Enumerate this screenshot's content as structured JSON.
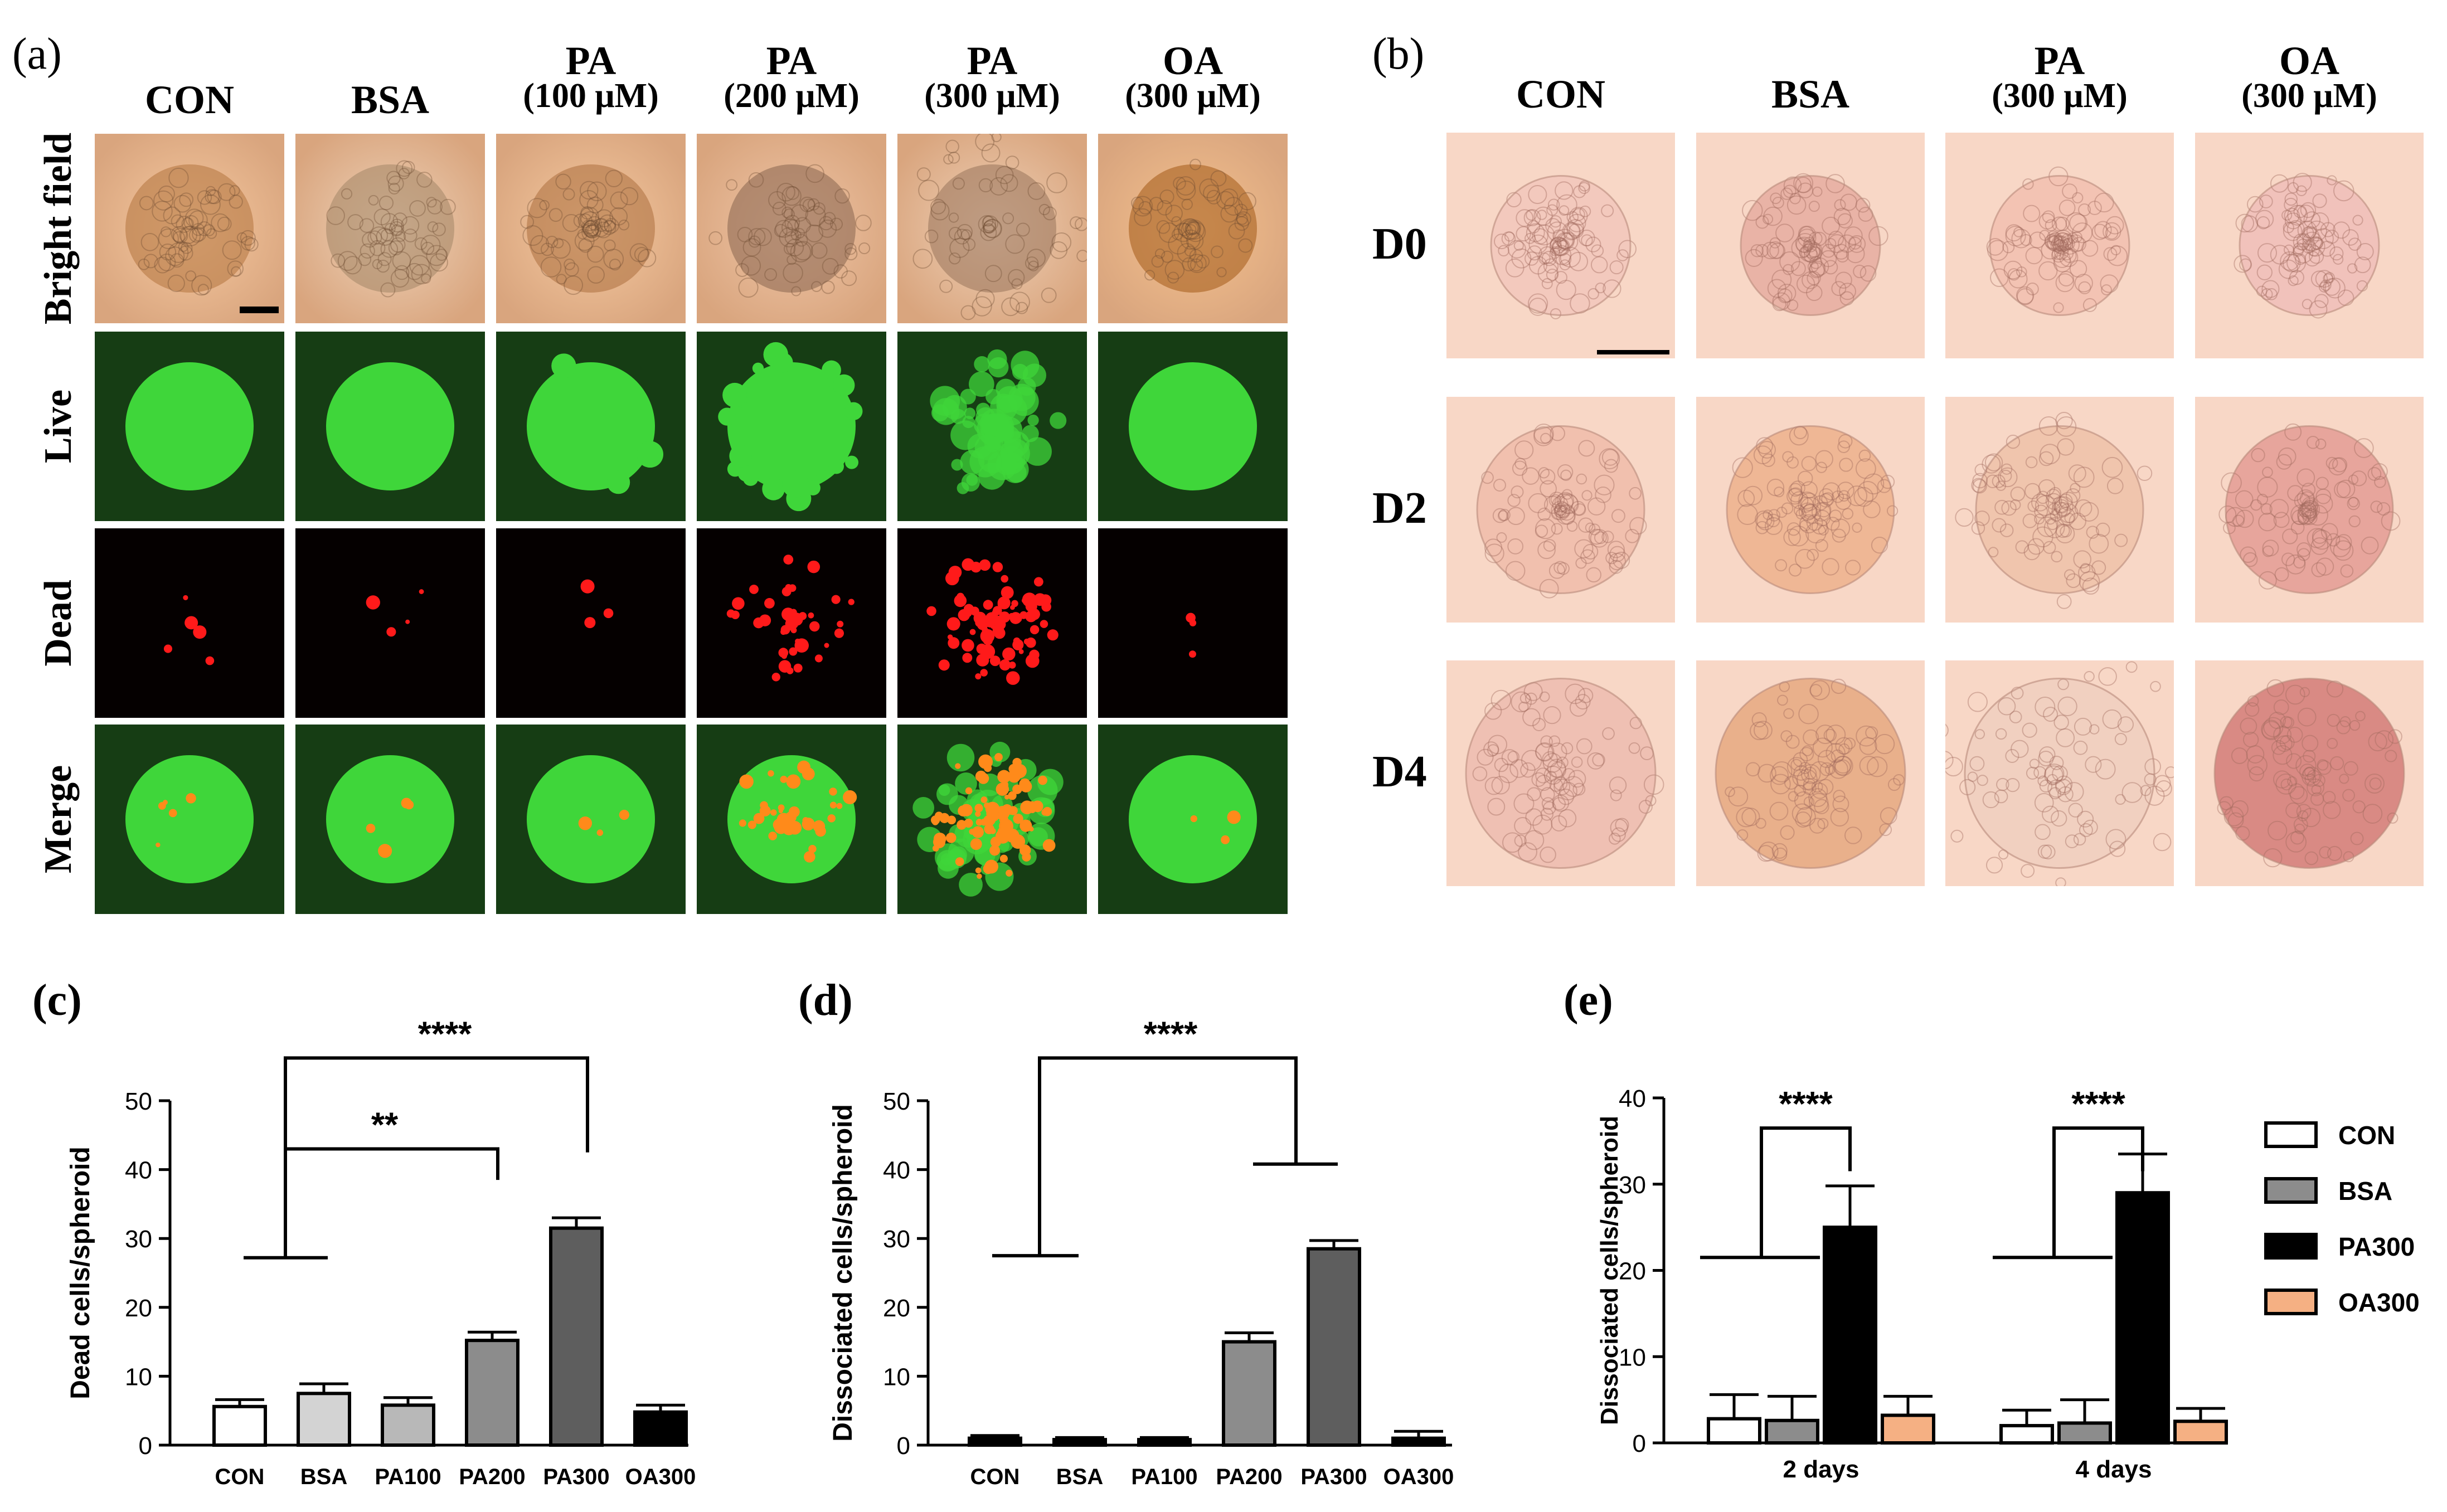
{
  "panel_a": {
    "label": "(a)",
    "columns": [
      {
        "line1": "CON",
        "line2": ""
      },
      {
        "line1": "BSA",
        "line2": ""
      },
      {
        "line1": "PA",
        "line2": "(100 μM)"
      },
      {
        "line1": "PA",
        "line2": "(200 μM)"
      },
      {
        "line1": "PA",
        "line2": "(300 μM)"
      },
      {
        "line1": "OA",
        "line2": "(300 μM)"
      }
    ],
    "rows": [
      "Bright field",
      "Live",
      "Dead",
      "Merge"
    ]
  },
  "panel_b": {
    "label": "(b)",
    "columns": [
      {
        "line1": "CON",
        "line2": ""
      },
      {
        "line1": "BSA",
        "line2": ""
      },
      {
        "line1": "PA",
        "line2": "(300 μM)"
      },
      {
        "line1": "OA",
        "line2": "(300 μM)"
      }
    ],
    "rows": [
      "D0",
      "D2",
      "D4"
    ]
  },
  "panel_c": {
    "label": "(c)"
  },
  "panel_d": {
    "label": "(d)"
  },
  "panel_e": {
    "label": "(e)"
  },
  "chart_data": [
    {
      "type": "bar",
      "panel": "c",
      "ylabel": "Dead cells/spheroid",
      "categories": [
        "CON",
        "BSA",
        "PA100",
        "PA200",
        "PA300",
        "OA300"
      ],
      "values": [
        5.6,
        7.5,
        5.8,
        15.2,
        31.5,
        4.8
      ],
      "errors": [
        1.0,
        1.4,
        1.1,
        1.2,
        1.5,
        1.0
      ],
      "colors": [
        "#ffffff",
        "#d3d3d3",
        "#b8b8b8",
        "#8c8c8c",
        "#5e5e5e",
        "#000000"
      ],
      "ylim": [
        0,
        50
      ],
      "yticks": [
        0,
        10,
        20,
        30,
        40,
        50
      ],
      "significance": [
        {
          "from": "CON",
          "to": "PA300",
          "label": "****"
        },
        {
          "from": "CON",
          "to": "PA200",
          "label": "**"
        }
      ]
    },
    {
      "type": "bar",
      "panel": "d",
      "ylabel": "Dissociated cells/spheroid",
      "categories": [
        "CON",
        "BSA",
        "PA100",
        "PA200",
        "PA300",
        "OA300"
      ],
      "values": [
        1.0,
        0.8,
        0.8,
        15.0,
        28.5,
        1.0
      ],
      "errors": [
        0.4,
        0.3,
        0.3,
        1.3,
        1.2,
        1.0
      ],
      "colors": [
        "#000000",
        "#000000",
        "#000000",
        "#8c8c8c",
        "#5e5e5e",
        "#000000"
      ],
      "ylim": [
        0,
        50
      ],
      "yticks": [
        0,
        10,
        20,
        30,
        40,
        50
      ],
      "significance": [
        {
          "from": "CON",
          "to": "PA300",
          "label": "****"
        }
      ]
    },
    {
      "type": "bar",
      "panel": "e",
      "ylabel": "Dissociated cells/spheroid",
      "categories": [
        "2 days",
        "4 days"
      ],
      "series": [
        {
          "name": "CON",
          "values": [
            2.8,
            2.0
          ],
          "errors": [
            2.8,
            1.8
          ],
          "color": "#ffffff"
        },
        {
          "name": "BSA",
          "values": [
            2.6,
            2.3
          ],
          "errors": [
            2.8,
            2.7
          ],
          "color": "#8c8c8c"
        },
        {
          "name": "PA300",
          "values": [
            25.0,
            29.0
          ],
          "errors": [
            4.8,
            4.5
          ],
          "color": "#000000"
        },
        {
          "name": "OA300",
          "values": [
            3.2,
            2.5
          ],
          "errors": [
            2.2,
            1.5
          ],
          "color": "#f5b083"
        }
      ],
      "ylim": [
        0,
        40
      ],
      "yticks": [
        0,
        10,
        20,
        30,
        40
      ],
      "significance": [
        {
          "category": "2 days",
          "label": "****"
        },
        {
          "category": "4 days",
          "label": "****"
        }
      ]
    }
  ]
}
